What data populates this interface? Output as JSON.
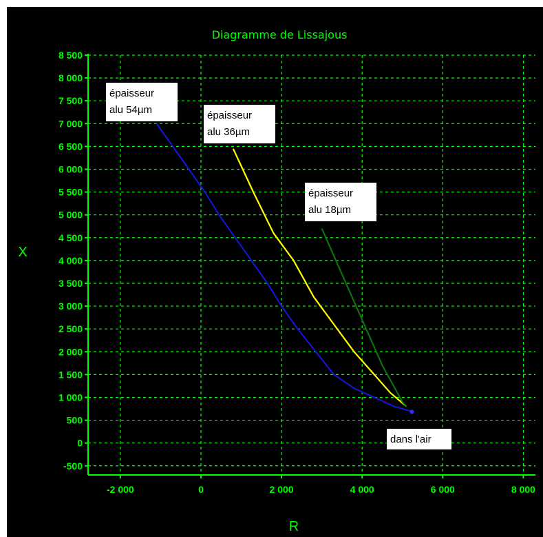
{
  "chart_data": {
    "type": "line",
    "title": "Diagramme de Lissajous",
    "xlabel": "R",
    "ylabel": "X",
    "xlim": [
      -2800,
      8300
    ],
    "ylim": [
      -700,
      8500
    ],
    "x_ticks": [
      -2000,
      0,
      2000,
      4000,
      6000,
      8000
    ],
    "x_tick_labels": [
      "-2 000",
      "0",
      "2 000",
      "4 000",
      "6 000",
      "8 000"
    ],
    "y_ticks": [
      -500,
      0,
      500,
      1000,
      1500,
      2000,
      2500,
      3000,
      3500,
      4000,
      4500,
      5000,
      5500,
      6000,
      6500,
      7000,
      7500,
      8000,
      8500
    ],
    "y_tick_labels": [
      "-500",
      "0",
      "500",
      "1 000",
      "1 500",
      "2 000",
      "2 500",
      "3 000",
      "3 500",
      "4 000",
      "4 500",
      "5 000",
      "5 500",
      "6 000",
      "6 500",
      "7 000",
      "7 500",
      "8 000",
      "8 500"
    ],
    "grid": true,
    "colors": {
      "background": "#000000",
      "axis": "#00ff00",
      "grid": "#00ff00",
      "callout_bg": "#ffffff"
    },
    "series": [
      {
        "color": "#1414d2",
        "points": [
          [
            -1100,
            7000
          ],
          [
            -700,
            6500
          ],
          [
            -300,
            6000
          ],
          [
            100,
            5500
          ],
          [
            450,
            5000
          ],
          [
            850,
            4500
          ],
          [
            1250,
            4000
          ],
          [
            1650,
            3500
          ],
          [
            2000,
            3000
          ],
          [
            2400,
            2500
          ],
          [
            2850,
            2000
          ],
          [
            3300,
            1500
          ],
          [
            3800,
            1200
          ],
          [
            4300,
            1000
          ],
          [
            4800,
            800
          ],
          [
            5200,
            700
          ]
        ]
      },
      {
        "color": "#ffff00",
        "points": [
          [
            800,
            6450
          ],
          [
            1300,
            5500
          ],
          [
            1800,
            4600
          ],
          [
            2300,
            4000
          ],
          [
            2800,
            3200
          ],
          [
            3300,
            2600
          ],
          [
            3800,
            2000
          ],
          [
            4300,
            1500
          ],
          [
            4700,
            1100
          ],
          [
            5100,
            800
          ]
        ]
      },
      {
        "color": "#107010",
        "points": [
          [
            3000,
            4700
          ],
          [
            3500,
            3700
          ],
          [
            4000,
            2700
          ],
          [
            4500,
            1700
          ],
          [
            5000,
            900
          ],
          [
            5100,
            800
          ]
        ]
      }
    ],
    "annotations": [
      {
        "lines": [
          "épaisseur",
          "alu 54µm"
        ],
        "at": [
          -1100,
          7000
        ]
      },
      {
        "lines": [
          "épaisseur",
          "alu 36µm"
        ],
        "at": [
          800,
          6450
        ]
      },
      {
        "lines": [
          "épaisseur",
          "alu 18µm"
        ],
        "at": [
          3000,
          4700
        ]
      },
      {
        "lines": [
          "dans l'air"
        ],
        "at": [
          5200,
          700
        ]
      }
    ]
  }
}
